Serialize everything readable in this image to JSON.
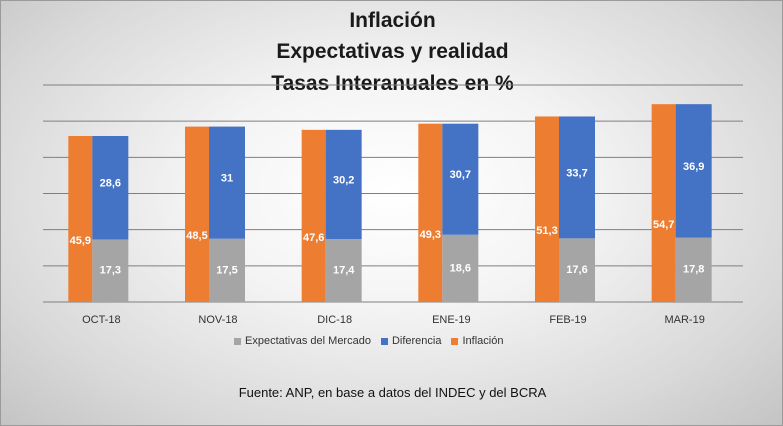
{
  "chart_data": {
    "type": "bar",
    "title_lines": [
      "Inflación",
      "Expectativas y realidad",
      "Tasas Interanuales en %"
    ],
    "categories": [
      "OCT-18",
      "NOV-18",
      "DIC-18",
      "ENE-19",
      "FEB-19",
      "MAR-19"
    ],
    "series": [
      {
        "name": "Expectativas del Mercado",
        "values": [
          17.3,
          17.5,
          17.4,
          18.6,
          17.6,
          17.8
        ],
        "labels": [
          "17,3",
          "17,5",
          "17,4",
          "18,6",
          "17,6",
          "17,8"
        ],
        "color": "#a5a5a5"
      },
      {
        "name": "Diferencia",
        "values": [
          28.6,
          31,
          30.2,
          30.7,
          33.7,
          36.9
        ],
        "labels": [
          "28,6",
          "31",
          "30,2",
          "30,7",
          "33,7",
          "36,9"
        ],
        "color": "#4472c4"
      },
      {
        "name": "Inflación",
        "values": [
          45.9,
          48.5,
          47.6,
          49.3,
          51.3,
          54.7
        ],
        "labels": [
          "45,9",
          "48,5",
          "47,6",
          "49,3",
          "51,3",
          "54,7"
        ],
        "color": "#ed7d31"
      }
    ],
    "stacked_series": [
      "Expectativas del Mercado",
      "Diferencia"
    ],
    "ylim": [
      0,
      60
    ],
    "grid": true,
    "legend_position": "bottom",
    "source": "Fuente: ANP, en base a datos del INDEC y del BCRA"
  }
}
